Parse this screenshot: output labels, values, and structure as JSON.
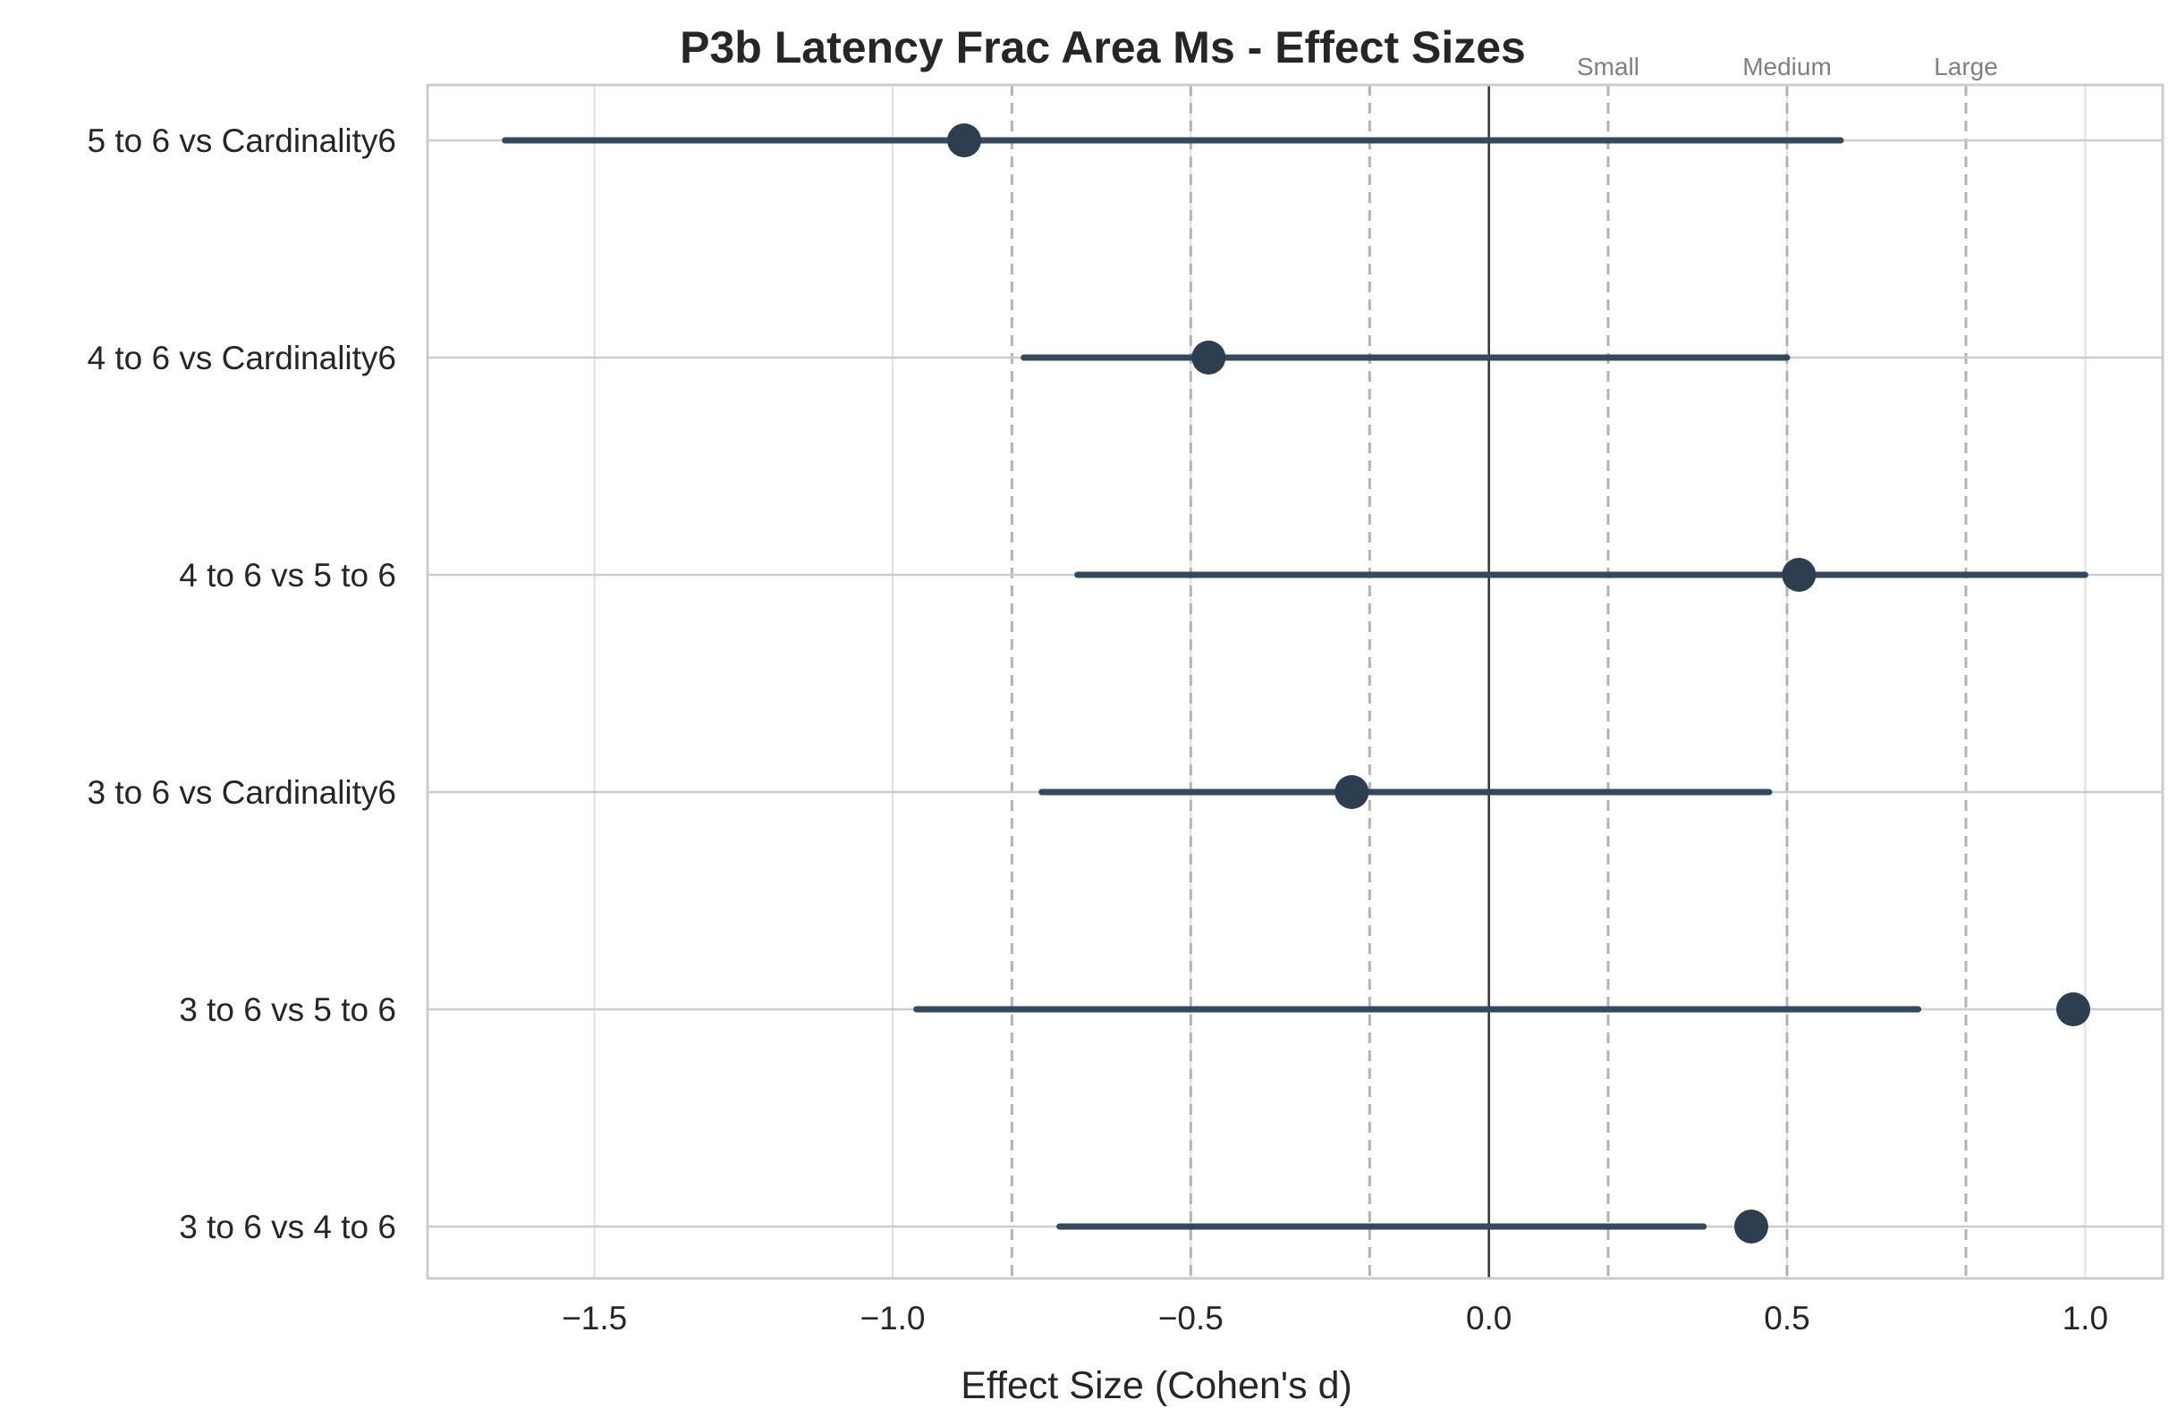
{
  "chart_data": {
    "type": "forest",
    "title": "P3b Latency Frac Area Ms - Effect Sizes",
    "xlabel": "Effect Size (Cohen's d)",
    "ylabel": "",
    "xlim": [
      -1.78,
      1.13
    ],
    "xticks": [
      -1.5,
      -1.0,
      -0.5,
      0.0,
      0.5,
      1.0
    ],
    "xtick_labels": [
      "−1.5",
      "−1.0",
      "−0.5",
      "0.0",
      "0.5",
      "1.0"
    ],
    "grid": true,
    "comparisons": [
      {
        "label": "5 to 6 vs Cardinality6",
        "d": -0.88,
        "ci": [
          -1.65,
          0.59
        ]
      },
      {
        "label": "4 to 6 vs Cardinality6",
        "d": -0.47,
        "ci": [
          -0.78,
          0.5
        ]
      },
      {
        "label": "4 to 6 vs 5 to 6",
        "d": 0.52,
        "ci": [
          -0.69,
          1.0
        ]
      },
      {
        "label": "3 to 6 vs Cardinality6",
        "d": -0.23,
        "ci": [
          -0.75,
          0.47
        ]
      },
      {
        "label": "3 to 6 vs 5 to 6",
        "d": 0.98,
        "ci": [
          -0.96,
          0.72
        ]
      },
      {
        "label": "3 to 6 vs 4 to 6",
        "d": 0.44,
        "ci": [
          -0.72,
          0.36
        ]
      }
    ],
    "reference_lines": [
      {
        "value": -0.8,
        "label": ""
      },
      {
        "value": -0.5,
        "label": ""
      },
      {
        "value": -0.2,
        "label": ""
      },
      {
        "value": 0.2,
        "label": "Small"
      },
      {
        "value": 0.5,
        "label": "Medium"
      },
      {
        "value": 0.8,
        "label": "Large"
      }
    ],
    "zero_line": 0.0,
    "colors": {
      "marker": "#2c3e50",
      "ci_line": "#34495e",
      "reference": "#b3b3b3",
      "zero": "#333333",
      "grid": "#e0e0e0",
      "row_line": "#cccccc",
      "axes": "#cccccc"
    }
  }
}
